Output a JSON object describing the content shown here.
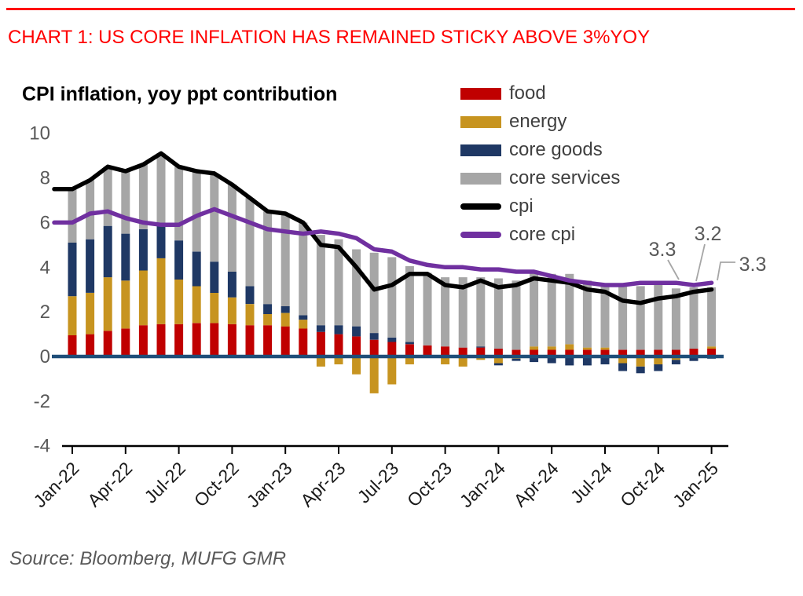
{
  "header": {
    "title": "CHART 1: US CORE INFLATION HAS REMAINED STICKY ABOVE 3%YOY",
    "title_color": "#FF0000",
    "rule_color": "#FF0000"
  },
  "figure": {
    "title": "CPI inflation, yoy ppt contribution"
  },
  "source": {
    "text": "Source: Bloomberg, MUFG GMR"
  },
  "colors": {
    "food": "#C00000",
    "energy": "#C79420",
    "core_goods": "#1F3864",
    "core_services": "#A6A6A6",
    "cpi_line": "#000000",
    "core_cpi_line": "#7030A0",
    "zero_line": "#1F4E79",
    "axis": "#000000",
    "y_tick_text": "#595959",
    "x_tick_text": "#1a1a1a",
    "annotation_text": "#595959",
    "annotation_leader": "#A6A6A6"
  },
  "legend": {
    "position": "top-right-inside",
    "items": [
      {
        "label": "food",
        "color": "#C00000",
        "swatch": "bar"
      },
      {
        "label": "energy",
        "color": "#C79420",
        "swatch": "bar"
      },
      {
        "label": "core goods",
        "color": "#1F3864",
        "swatch": "bar"
      },
      {
        "label": "core services",
        "color": "#A6A6A6",
        "swatch": "bar"
      },
      {
        "label": "cpi",
        "color": "#000000",
        "swatch": "line"
      },
      {
        "label": "core cpi",
        "color": "#7030A0",
        "swatch": "line"
      }
    ]
  },
  "annotations": [
    {
      "label": "3.3",
      "series": "core cpi",
      "category": "Nov-24"
    },
    {
      "label": "3.2",
      "series": "core cpi",
      "category": "Dec-24"
    },
    {
      "label": "3.3",
      "series": "core cpi",
      "category": "Jan-25"
    }
  ],
  "chart_data": {
    "type": "bar",
    "subtype": "stacked bars with line overlays",
    "title": "CPI inflation, yoy ppt contribution",
    "xlabel": "",
    "ylabel": "",
    "ylim": [
      -4,
      10
    ],
    "yticks": [
      10,
      8,
      6,
      4,
      2,
      0,
      -2,
      -4
    ],
    "grid": false,
    "categories": [
      "Jan-22",
      "Feb-22",
      "Mar-22",
      "Apr-22",
      "May-22",
      "Jun-22",
      "Jul-22",
      "Aug-22",
      "Sep-22",
      "Oct-22",
      "Nov-22",
      "Dec-22",
      "Jan-23",
      "Feb-23",
      "Mar-23",
      "Apr-23",
      "May-23",
      "Jun-23",
      "Jul-23",
      "Aug-23",
      "Sep-23",
      "Oct-23",
      "Nov-23",
      "Dec-23",
      "Jan-24",
      "Feb-24",
      "Mar-24",
      "Apr-24",
      "May-24",
      "Jun-24",
      "Jul-24",
      "Aug-24",
      "Sep-24",
      "Oct-24",
      "Nov-24",
      "Dec-24",
      "Jan-25"
    ],
    "xtick_labels": [
      "Jan-22",
      "Apr-22",
      "Jul-22",
      "Oct-22",
      "Jan-23",
      "Apr-23",
      "Jul-23",
      "Oct-23",
      "Jan-24",
      "Apr-24",
      "Jul-24",
      "Oct-24",
      "Jan-25"
    ],
    "series": [
      {
        "name": "food",
        "kind": "bar",
        "color": "#C00000",
        "values": [
          0.95,
          1.0,
          1.15,
          1.25,
          1.4,
          1.45,
          1.45,
          1.5,
          1.5,
          1.45,
          1.4,
          1.4,
          1.35,
          1.25,
          1.1,
          1.0,
          0.9,
          0.75,
          0.65,
          0.55,
          0.5,
          0.45,
          0.4,
          0.4,
          0.35,
          0.3,
          0.3,
          0.3,
          0.3,
          0.3,
          0.3,
          0.3,
          0.3,
          0.3,
          0.3,
          0.35,
          0.35
        ]
      },
      {
        "name": "energy",
        "kind": "bar",
        "color": "#C79420",
        "values": [
          1.75,
          1.85,
          2.4,
          2.15,
          2.45,
          2.95,
          2.0,
          1.65,
          1.35,
          1.2,
          0.95,
          0.5,
          0.6,
          0.4,
          -0.45,
          -0.35,
          -0.8,
          -1.65,
          -1.25,
          -0.35,
          -0.05,
          -0.35,
          -0.45,
          -0.15,
          -0.3,
          -0.1,
          0.15,
          0.15,
          0.25,
          0.1,
          0.1,
          -0.3,
          -0.45,
          -0.35,
          -0.15,
          -0.05,
          0.1
        ]
      },
      {
        "name": "core goods",
        "kind": "bar",
        "color": "#1F3864",
        "values": [
          2.4,
          2.4,
          2.3,
          2.1,
          1.85,
          1.5,
          1.75,
          1.55,
          1.4,
          1.15,
          0.8,
          0.45,
          0.3,
          0.2,
          0.3,
          0.4,
          0.45,
          0.3,
          0.2,
          0.1,
          0.0,
          0.0,
          0.0,
          0.05,
          -0.1,
          -0.1,
          -0.25,
          -0.3,
          -0.4,
          -0.4,
          -0.35,
          -0.35,
          -0.3,
          -0.3,
          -0.2,
          -0.15,
          -0.1
        ]
      },
      {
        "name": "core services",
        "kind": "bar",
        "color": "#A6A6A6",
        "values": [
          2.4,
          2.65,
          2.65,
          2.8,
          2.9,
          3.2,
          3.3,
          3.6,
          3.95,
          3.9,
          3.95,
          4.15,
          4.15,
          4.15,
          4.05,
          3.85,
          3.45,
          3.6,
          3.6,
          3.4,
          3.25,
          3.1,
          3.15,
          3.1,
          3.15,
          3.1,
          3.3,
          3.25,
          3.15,
          3.0,
          2.85,
          2.85,
          2.85,
          2.95,
          2.75,
          2.75,
          2.65
        ]
      },
      {
        "name": "cpi",
        "kind": "line",
        "color": "#000000",
        "values": [
          7.5,
          7.9,
          8.5,
          8.3,
          8.6,
          9.1,
          8.5,
          8.3,
          8.2,
          7.7,
          7.1,
          6.5,
          6.4,
          6.0,
          5.0,
          4.9,
          4.0,
          3.0,
          3.2,
          3.7,
          3.7,
          3.2,
          3.1,
          3.4,
          3.1,
          3.2,
          3.5,
          3.4,
          3.3,
          3.0,
          2.9,
          2.5,
          2.4,
          2.6,
          2.7,
          2.9,
          3.0
        ]
      },
      {
        "name": "core cpi",
        "kind": "line",
        "color": "#7030A0",
        "values": [
          6.0,
          6.4,
          6.5,
          6.2,
          6.0,
          5.9,
          5.9,
          6.3,
          6.6,
          6.3,
          6.0,
          5.7,
          5.6,
          5.5,
          5.6,
          5.5,
          5.3,
          4.8,
          4.7,
          4.3,
          4.1,
          4.0,
          4.0,
          3.9,
          3.9,
          3.8,
          3.8,
          3.6,
          3.4,
          3.3,
          3.2,
          3.2,
          3.3,
          3.3,
          3.3,
          3.2,
          3.3
        ]
      }
    ]
  }
}
